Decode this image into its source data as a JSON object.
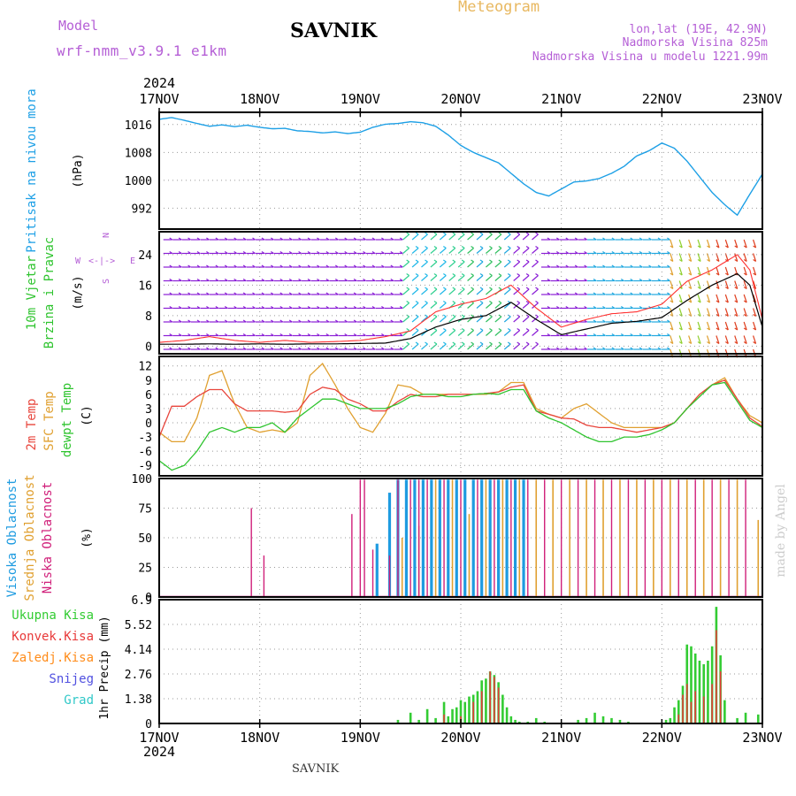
{
  "header": {
    "model_label": "Model",
    "model_name": "wrf-nmm_v3.9.1 e1km",
    "station": "SAVNIK",
    "chart_type_label": "Meteogram",
    "coords": "lon,lat (19E, 42.9N)",
    "altitude": "Nadmorska Visina 825m",
    "model_altitude": "Nadmorska Visina u modelu 1221.99m"
  },
  "footer": {
    "station": "SAVNIK",
    "credit": "made by Angel"
  },
  "time_axis": {
    "year": "2024",
    "days": [
      "17NOV",
      "18NOV",
      "19NOV",
      "20NOV",
      "21NOV",
      "22NOV",
      "23NOV"
    ]
  },
  "colors": {
    "pressure": "#1ea0e6",
    "temp2m": "#e8453c",
    "sfc_temp": "#e0a030",
    "dewpoint": "#2fc42f",
    "wind_speed": "#000000",
    "gust": "#ff3030",
    "cloud_high": "#1e9be0",
    "cloud_mid": "#e0a030",
    "cloud_low": "#d0207a",
    "precip_total": "#33cc33",
    "precip_conv": "#e83a3a",
    "precip_frozen": "#ff8c1a",
    "precip_snow": "#5050e0",
    "precip_graupel": "#30c8c8",
    "model_label": "#b55fd6",
    "meteogram_label": "#e8b860",
    "wind_legend": "#b55fd6"
  },
  "wind_legend": {
    "w": "W",
    "e": "E",
    "n": "N",
    "s": "S"
  },
  "chart_data": [
    {
      "type": "line",
      "panel": "pressure",
      "title": "",
      "ylabel_lines": [
        "Pritisak na nivou mora"
      ],
      "unit": "(hPa)",
      "yticks": [
        992,
        1000,
        1008,
        1016
      ],
      "ylim": [
        986,
        1019.5
      ],
      "x_hours": [
        0,
        3,
        6,
        9,
        12,
        15,
        18,
        21,
        24,
        27,
        30,
        33,
        36,
        39,
        42,
        45,
        48,
        51,
        54,
        57,
        60,
        63,
        66,
        69,
        72,
        75,
        78,
        81,
        84,
        87,
        90,
        93,
        96,
        99,
        102,
        105,
        108,
        111,
        114,
        117,
        120,
        123,
        126,
        129,
        132,
        135,
        138,
        141,
        144
      ],
      "series": [
        {
          "values": [
            1017.5,
            1018,
            1017.2,
            1016.3,
            1015.5,
            1015.9,
            1015.4,
            1015.8,
            1015.2,
            1014.8,
            1014.9,
            1014.2,
            1014.0,
            1013.6,
            1013.9,
            1013.4,
            1013.8,
            1015.2,
            1016.1,
            1016.3,
            1016.8,
            1016.5,
            1015.5,
            1013,
            1010,
            1008,
            1006.5,
            1005,
            1002,
            999,
            996.5,
            995.5,
            997.5,
            999.5,
            999.8,
            1000.5,
            1002,
            1004,
            1007,
            1008.5,
            1010.7,
            1009.2,
            1005.5,
            1001,
            996.5,
            993,
            990,
            996,
            1001.8
          ]
        }
      ]
    },
    {
      "type": "line",
      "panel": "wind",
      "ylabel_lines": [
        "10m Vjetar",
        "Brzina i Pravac"
      ],
      "unit": "(m/s)",
      "yticks": [
        0,
        8,
        16,
        24
      ],
      "ylim": [
        -2,
        30
      ],
      "x_hours": [
        0,
        6,
        12,
        18,
        24,
        30,
        36,
        42,
        48,
        54,
        60,
        66,
        72,
        78,
        84,
        90,
        96,
        102,
        108,
        114,
        120,
        126,
        132,
        138,
        141,
        144
      ],
      "series": [
        {
          "name": "Brzina",
          "values": [
            0.5,
            0.5,
            0.6,
            0.5,
            0.6,
            0.5,
            0.6,
            0.6,
            0.7,
            0.8,
            2,
            5,
            7,
            8,
            11.5,
            7,
            3,
            4.5,
            6,
            6.5,
            7.5,
            12,
            16,
            19,
            16,
            5
          ]
        },
        {
          "name": "Udar",
          "values": [
            1,
            1.5,
            2.5,
            1.5,
            1,
            1.5,
            1,
            1.2,
            1.5,
            2.5,
            4,
            9,
            11,
            12.5,
            16,
            10,
            5,
            7,
            8.5,
            9,
            11,
            17,
            20,
            24,
            20,
            7
          ]
        }
      ]
    },
    {
      "type": "line",
      "panel": "temperature",
      "ylabel_lines": [
        "2m Temp",
        "SFC Temp",
        "dewpt Temp"
      ],
      "unit": "(C)",
      "yticks": [
        -9,
        -6,
        -3,
        0,
        3,
        6,
        9,
        12
      ],
      "ylim": [
        -11.2,
        14
      ],
      "x_hours": [
        0,
        3,
        6,
        9,
        12,
        15,
        18,
        21,
        24,
        27,
        30,
        33,
        36,
        39,
        42,
        45,
        48,
        51,
        54,
        57,
        60,
        63,
        66,
        69,
        72,
        75,
        78,
        81,
        84,
        87,
        90,
        93,
        96,
        99,
        102,
        105,
        108,
        111,
        114,
        117,
        120,
        123,
        126,
        129,
        132,
        135,
        138,
        141,
        144
      ],
      "series": [
        {
          "name": "2m Temp",
          "values": [
            -3,
            3.5,
            3.5,
            5.5,
            7,
            7,
            4,
            2.5,
            2.5,
            2.5,
            2.2,
            2.5,
            6,
            7.5,
            7,
            5,
            4,
            2.5,
            2.5,
            4.5,
            6,
            5.5,
            5.5,
            6,
            6,
            6,
            6.2,
            6.5,
            7.5,
            8,
            2.5,
            1.8,
            1,
            0.8,
            -0.5,
            -1,
            -1,
            -1.5,
            -2,
            -1.5,
            -1,
            0,
            3,
            6,
            8,
            9,
            5,
            1,
            -0.8
          ]
        },
        {
          "name": "SFC Temp",
          "values": [
            -2,
            -4,
            -4,
            1,
            10,
            11,
            4,
            -1,
            -2,
            -1.5,
            -2,
            0,
            10,
            12.5,
            8,
            3,
            -1,
            -2,
            2,
            8,
            7.5,
            6,
            6,
            6,
            6,
            6,
            6,
            6.5,
            8.5,
            8.5,
            3,
            1.8,
            1,
            3,
            4,
            2,
            0,
            -1,
            -1,
            -1,
            -1,
            0,
            3,
            6,
            8,
            9.5,
            5,
            1.5,
            0
          ]
        },
        {
          "name": "dewpt Temp",
          "values": [
            -8,
            -10,
            -9,
            -6,
            -2,
            -1,
            -2,
            -1,
            -1,
            0,
            -2,
            1,
            3,
            5,
            5,
            4,
            3,
            3,
            3,
            4,
            5.5,
            6,
            6,
            5.5,
            5.5,
            6,
            6.2,
            6,
            7,
            7,
            2.5,
            1,
            0,
            -1.5,
            -3,
            -4,
            -4,
            -3,
            -3,
            -2.5,
            -1.5,
            0,
            3,
            5.5,
            8,
            8.5,
            4.5,
            0.5,
            -1
          ]
        }
      ]
    },
    {
      "type": "bar",
      "panel": "clouds",
      "ylabel_lines": [
        "Visoka Oblacnost",
        "Srednja Oblacnost",
        "Niska Oblacnost"
      ],
      "unit": "(%)",
      "yticks": [
        0,
        25,
        50,
        75,
        100
      ],
      "ylim": [
        0,
        100
      ],
      "series": [
        {
          "name": "Visoka Oblacnost",
          "x_hours": [
            52,
            55,
            57,
            59,
            61,
            63,
            65,
            67,
            69,
            71,
            73,
            75,
            77,
            79,
            81,
            83,
            85,
            87
          ],
          "values": [
            45,
            88,
            99,
            99,
            99,
            99,
            99,
            99,
            99,
            99,
            99,
            99,
            99,
            99,
            99,
            99,
            99,
            99
          ]
        },
        {
          "name": "Srednja Oblacnost",
          "x_hours": [
            58,
            62,
            66,
            70,
            74,
            78,
            82,
            86,
            90,
            94,
            98,
            102,
            106,
            110,
            114,
            118,
            122,
            126,
            130,
            134,
            138,
            143
          ],
          "values": [
            50,
            60,
            99,
            99,
            70,
            99,
            99,
            99,
            99,
            99,
            99,
            99,
            99,
            99,
            99,
            99,
            99,
            99,
            99,
            99,
            99,
            65
          ]
        },
        {
          "name": "Niska Oblacnost",
          "x_hours": [
            22,
            25,
            46,
            48,
            49,
            51,
            55,
            57,
            60,
            62,
            64,
            68,
            72,
            76,
            80,
            84,
            88,
            92,
            96,
            100,
            104,
            108,
            112,
            116,
            120,
            124,
            128,
            132,
            136,
            140
          ],
          "values": [
            75,
            35,
            70,
            99,
            99,
            40,
            35,
            99,
            99,
            99,
            99,
            99,
            99,
            99,
            99,
            99,
            99,
            99,
            99,
            99,
            99,
            99,
            99,
            99,
            99,
            99,
            99,
            99,
            99,
            99
          ]
        }
      ]
    },
    {
      "type": "bar",
      "panel": "precip",
      "ylabel_lines": [
        "1hr Precip",
        "(mm)"
      ],
      "legend_lines": [
        "Ukupna Kisa",
        "Konvek.Kisa",
        "Zaledj.Kisa",
        "Snijeg",
        "Grad"
      ],
      "yticks": [
        0,
        1.38,
        2.76,
        4.14,
        5.52,
        6.9
      ],
      "ylim": [
        0,
        6.9
      ],
      "series": [
        {
          "name": "Ukupna Kisa",
          "x_hours": [
            57,
            60,
            62,
            64,
            66,
            68,
            69,
            70,
            71,
            72,
            73,
            74,
            75,
            76,
            77,
            78,
            79,
            80,
            81,
            82,
            83,
            84,
            85,
            86,
            88,
            90,
            92,
            100,
            102,
            104,
            106,
            108,
            110,
            112,
            121,
            122,
            123,
            124,
            125,
            126,
            127,
            128,
            129,
            130,
            131,
            132,
            133,
            134,
            135,
            138,
            140,
            143
          ],
          "values": [
            0.2,
            0.6,
            0.2,
            0.8,
            0.3,
            1.2,
            0.4,
            0.8,
            0.9,
            1.3,
            1.2,
            1.5,
            1.6,
            1.8,
            2.4,
            2.5,
            2.9,
            2.7,
            2.3,
            1.6,
            0.9,
            0.4,
            0.2,
            0.1,
            0.1,
            0.3,
            0.1,
            0.2,
            0.3,
            0.6,
            0.4,
            0.3,
            0.2,
            0.1,
            0.2,
            0.3,
            0.9,
            1.3,
            2.1,
            4.4,
            4.3,
            3.9,
            3.5,
            3.3,
            3.5,
            4.3,
            6.5,
            3.8,
            1.3,
            0.3,
            0.6,
            0.5
          ]
        },
        {
          "name": "Konvek.Kisa",
          "x_hours": [
            68,
            72,
            75,
            77,
            79,
            80,
            81,
            124,
            125,
            126,
            127,
            128,
            130,
            132,
            133,
            134
          ],
          "values": [
            0.5,
            0.4,
            1.2,
            1.8,
            2.9,
            2.6,
            2,
            0.5,
            1.6,
            2.2,
            1.2,
            1.8,
            1.5,
            2.2,
            5.2,
            2.9
          ]
        }
      ]
    }
  ]
}
